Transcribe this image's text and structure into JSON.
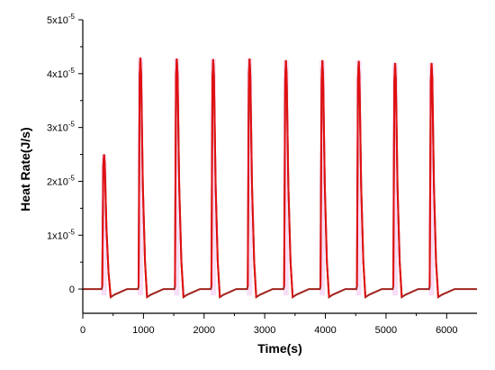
{
  "chart_data": {
    "type": "line",
    "xlabel": "Time(s)",
    "ylabel": "Heat Rate(J/s)",
    "xlim": [
      0,
      6500
    ],
    "ylim": [
      -4.5e-06,
      5e-05
    ],
    "x_ticks": [
      0,
      1000,
      2000,
      3000,
      4000,
      5000,
      6000
    ],
    "x_tick_labels": [
      "0",
      "1000",
      "2000",
      "3000",
      "4000",
      "5000",
      "6000"
    ],
    "y_ticks": [
      0,
      1e-05,
      2e-05,
      3e-05,
      4e-05,
      5e-05
    ],
    "y_tick_labels": [
      {
        "mant": "0",
        "exp": ""
      },
      {
        "mant": "1x10",
        "exp": "-5"
      },
      {
        "mant": "2x10",
        "exp": "-5"
      },
      {
        "mant": "3x10",
        "exp": "-5"
      },
      {
        "mant": "4x10",
        "exp": "-5"
      },
      {
        "mant": "5x10",
        "exp": "-5"
      }
    ],
    "grid": false,
    "colors": {
      "line": "#a0231e",
      "peak_line": "#e01010",
      "peak_shade": "#f2c2ee"
    },
    "series": [
      {
        "peaks": [
          {
            "t": 350,
            "h": 2.5e-05
          },
          {
            "t": 950,
            "h": 4.3e-05
          },
          {
            "t": 1550,
            "h": 4.28e-05
          },
          {
            "t": 2150,
            "h": 4.27e-05
          },
          {
            "t": 2750,
            "h": 4.28e-05
          },
          {
            "t": 3350,
            "h": 4.25e-05
          },
          {
            "t": 3950,
            "h": 4.25e-05
          },
          {
            "t": 4550,
            "h": 4.24e-05
          },
          {
            "t": 5150,
            "h": 4.2e-05
          },
          {
            "t": 5750,
            "h": 4.2e-05
          }
        ],
        "undershoot": -1.5e-06,
        "baseline": 0
      }
    ]
  }
}
